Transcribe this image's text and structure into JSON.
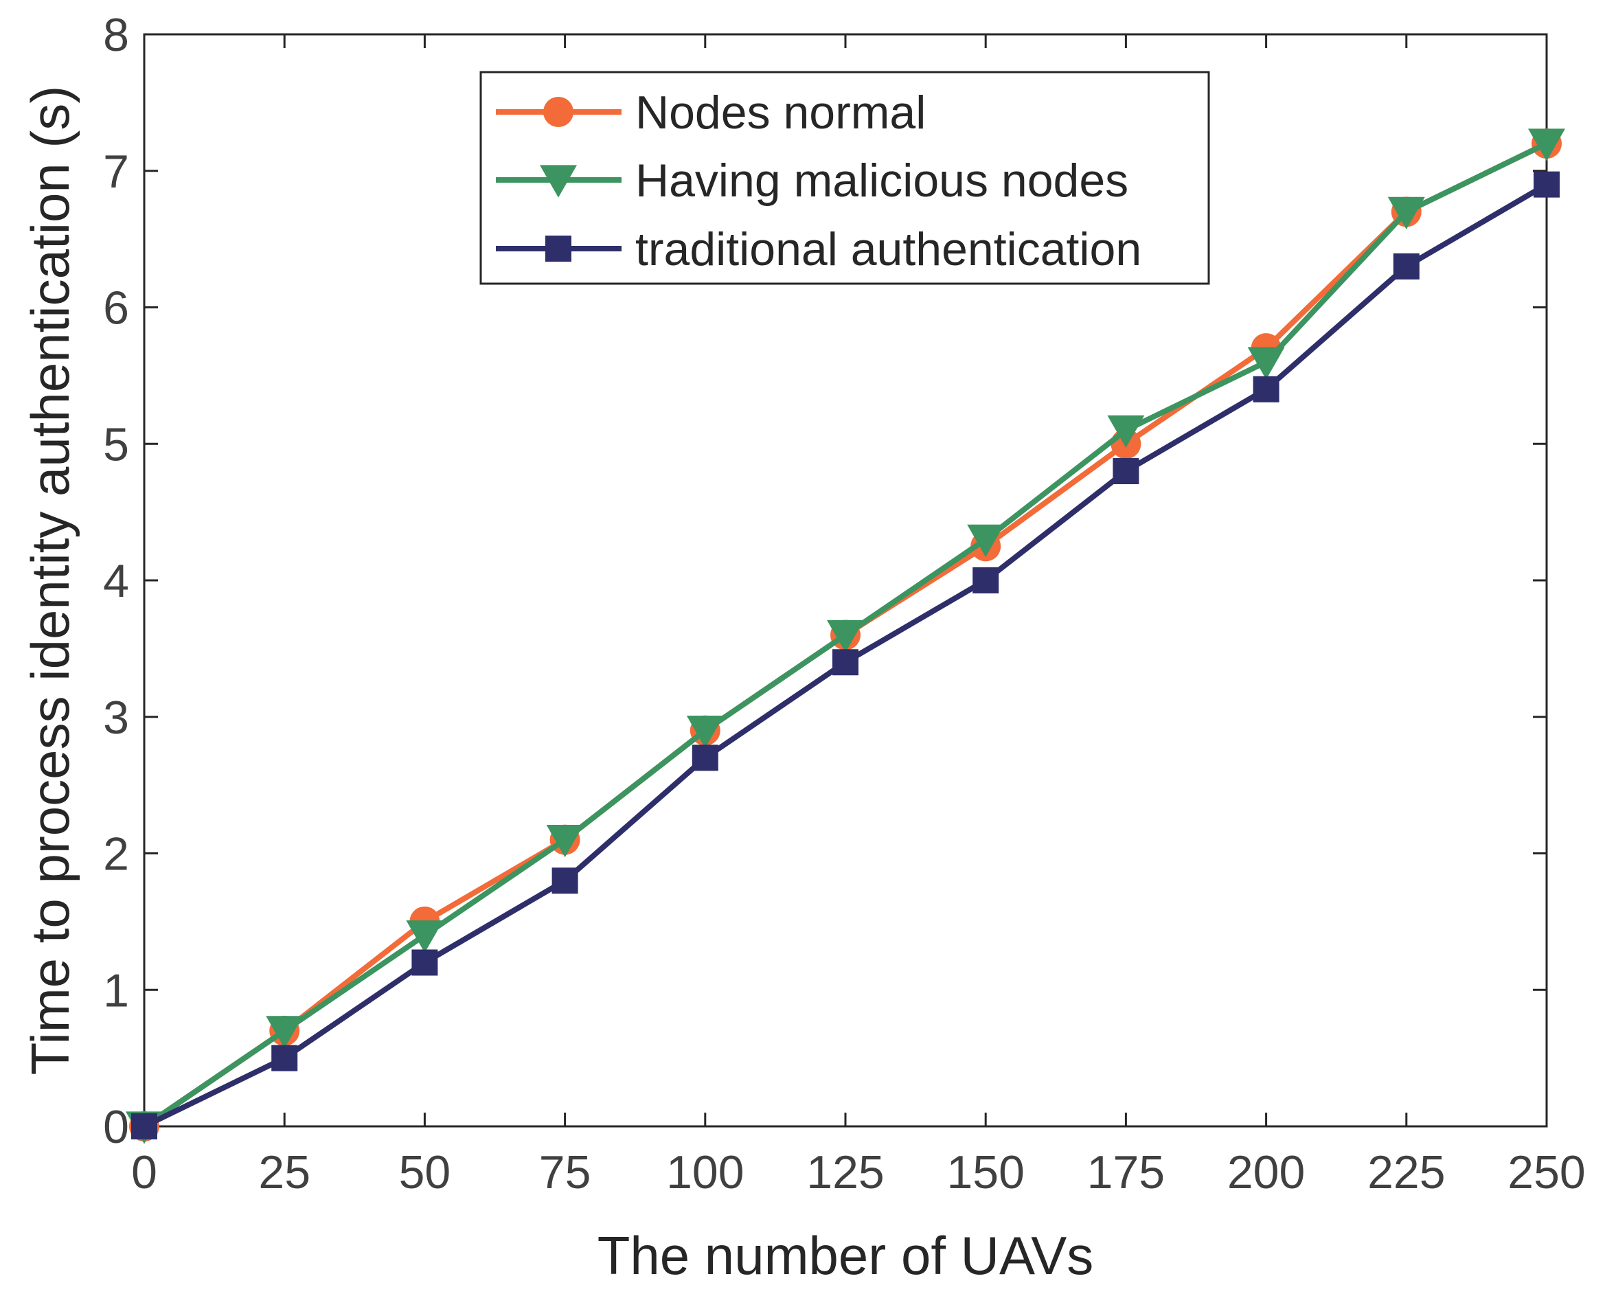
{
  "chart_data": {
    "type": "line",
    "title": "",
    "xlabel": "The number of UAVs",
    "ylabel": "Time to process identity authentication (s)",
    "x": [
      0,
      25,
      50,
      75,
      100,
      125,
      150,
      175,
      200,
      225,
      250
    ],
    "xlim": [
      0,
      250
    ],
    "ylim": [
      0,
      8
    ],
    "xticks": [
      0,
      25,
      50,
      75,
      100,
      125,
      150,
      175,
      200,
      225,
      250
    ],
    "yticks": [
      0,
      1,
      2,
      3,
      4,
      5,
      6,
      7,
      8
    ],
    "grid": false,
    "legend_position": "top-center",
    "series": [
      {
        "name": "Nodes normal",
        "color": "#f26b38",
        "marker": "circle",
        "values": [
          0,
          0.7,
          1.5,
          2.1,
          2.9,
          3.6,
          4.25,
          5.0,
          5.7,
          6.7,
          7.2
        ]
      },
      {
        "name": "Having malicious nodes",
        "color": "#3c9460",
        "marker": "triangle-down",
        "values": [
          0,
          0.7,
          1.4,
          2.1,
          2.9,
          3.6,
          4.3,
          5.1,
          5.6,
          6.7,
          7.2
        ]
      },
      {
        "name": "traditional authentication",
        "color": "#2e2e6a",
        "marker": "square",
        "values": [
          0,
          0.5,
          1.2,
          1.8,
          2.7,
          3.4,
          4.0,
          4.8,
          5.4,
          6.3,
          6.9
        ]
      }
    ]
  }
}
